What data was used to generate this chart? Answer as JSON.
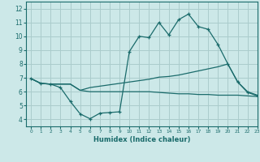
{
  "xlabel": "Humidex (Indice chaleur)",
  "xlim": [
    -0.5,
    23
  ],
  "ylim": [
    3.5,
    12.5
  ],
  "xticks": [
    0,
    1,
    2,
    3,
    4,
    5,
    6,
    7,
    8,
    9,
    10,
    11,
    12,
    13,
    14,
    15,
    16,
    17,
    18,
    19,
    20,
    21,
    22,
    23
  ],
  "yticks": [
    4,
    5,
    6,
    7,
    8,
    9,
    10,
    11,
    12
  ],
  "bg_color": "#cce8e8",
  "grid_color": "#aacccc",
  "line_color": "#1a6b6b",
  "curve1_x": [
    0,
    1,
    2,
    3,
    4,
    5,
    6,
    7,
    8,
    9,
    10,
    11,
    12,
    13,
    14,
    15,
    16,
    17,
    18,
    19,
    20,
    21,
    22,
    23
  ],
  "curve1_y": [
    6.95,
    6.6,
    6.55,
    6.55,
    6.55,
    6.1,
    6.3,
    6.4,
    6.5,
    6.6,
    6.7,
    6.8,
    6.9,
    7.05,
    7.1,
    7.2,
    7.35,
    7.5,
    7.65,
    7.8,
    8.0,
    6.7,
    6.0,
    5.75
  ],
  "curve2_x": [
    0,
    1,
    2,
    3,
    4,
    5,
    6,
    7,
    8,
    9,
    10,
    11,
    12,
    13,
    14,
    15,
    16,
    17,
    18,
    19,
    20,
    21,
    22,
    23
  ],
  "curve2_y": [
    6.95,
    6.6,
    6.55,
    6.3,
    5.3,
    4.4,
    4.05,
    4.45,
    4.5,
    4.55,
    8.9,
    10.0,
    9.9,
    11.0,
    10.1,
    11.2,
    11.6,
    10.7,
    10.5,
    9.4,
    8.0,
    6.7,
    5.95,
    5.7
  ],
  "curve3_x": [
    0,
    1,
    2,
    3,
    4,
    5,
    6,
    7,
    8,
    9,
    10,
    11,
    12,
    13,
    14,
    15,
    16,
    17,
    18,
    19,
    20,
    21,
    22,
    23
  ],
  "curve3_y": [
    6.95,
    6.6,
    6.55,
    6.55,
    6.55,
    6.1,
    6.0,
    6.0,
    6.0,
    6.0,
    6.0,
    6.0,
    6.0,
    5.95,
    5.9,
    5.85,
    5.85,
    5.8,
    5.8,
    5.75,
    5.75,
    5.75,
    5.7,
    5.65
  ]
}
